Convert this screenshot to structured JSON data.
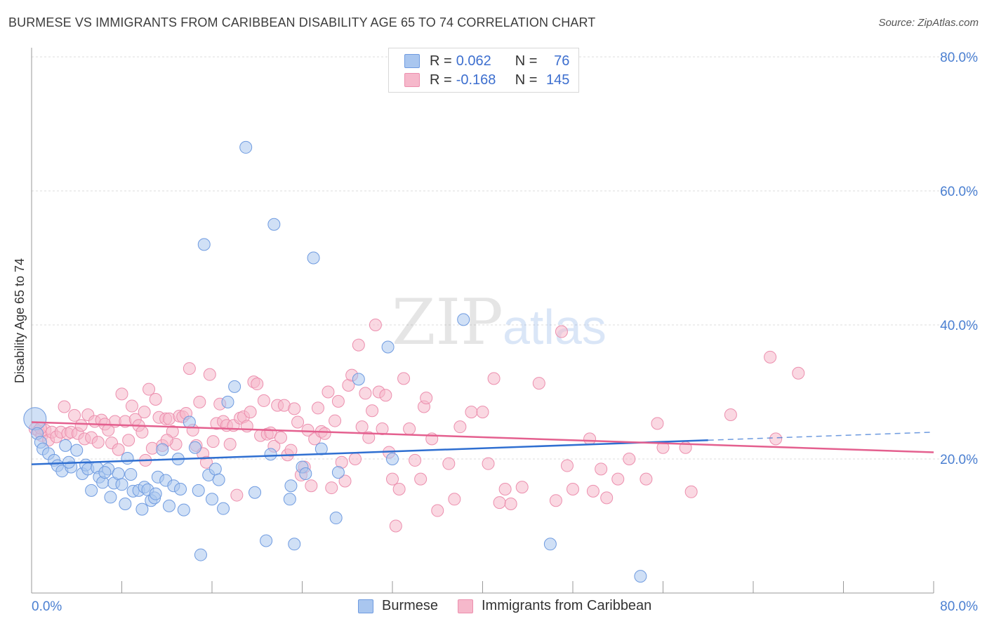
{
  "title": "BURMESE VS IMMIGRANTS FROM CARIBBEAN DISABILITY AGE 65 TO 74 CORRELATION CHART",
  "source": "Source: ZipAtlas.com",
  "watermark": {
    "zip": "ZIP",
    "atlas": "atlas"
  },
  "legend": {
    "burmese": {
      "r_label": "R =",
      "r_value": "0.062",
      "n_label": "N =",
      "n_value": "76"
    },
    "caribbean": {
      "r_label": "R =",
      "r_value": "-0.168",
      "n_label": "N =",
      "n_value": "145"
    }
  },
  "bottom_legend": {
    "burmese": "Burmese",
    "caribbean": "Immigrants from Caribbean"
  },
  "colors": {
    "burmese_fill": "#a9c6ef",
    "burmese_stroke": "#6f9be0",
    "burmese_line": "#2f6fd1",
    "caribbean_fill": "#f6b8cb",
    "caribbean_stroke": "#ec8fae",
    "caribbean_line": "#e4608f",
    "axis_text": "#4a7fd1",
    "grid": "#dddddd"
  },
  "chart_data": {
    "type": "scatter",
    "title": "BURMESE VS IMMIGRANTS FROM CARIBBEAN DISABILITY AGE 65 TO 74 CORRELATION CHART",
    "xlabel": "",
    "ylabel": "Disability Age 65 to 74",
    "xlim": [
      0,
      80
    ],
    "ylim": [
      0,
      80
    ],
    "x_tick_labels": [
      "0.0%",
      "80.0%"
    ],
    "y_tick_labels": [
      "20.0%",
      "40.0%",
      "60.0%",
      "80.0%"
    ],
    "y_ticks": [
      20,
      40,
      60,
      80
    ],
    "series": [
      {
        "name": "Burmese",
        "r": 0.062,
        "n": 76,
        "trend": {
          "x0": 0,
          "y0": 19.2,
          "x1": 60,
          "y1": 22.8,
          "dashed_to_x": 80,
          "dashed_to_y": 24.0
        },
        "points": [
          [
            0.3,
            26.0
          ],
          [
            0.5,
            23.8
          ],
          [
            0.8,
            22.5
          ],
          [
            1.0,
            21.5
          ],
          [
            1.5,
            20.8
          ],
          [
            2.0,
            19.8
          ],
          [
            2.3,
            19.0
          ],
          [
            2.7,
            18.2
          ],
          [
            3.0,
            22.0
          ],
          [
            3.5,
            18.8
          ],
          [
            4.0,
            21.3
          ],
          [
            4.5,
            17.8
          ],
          [
            4.8,
            19.1
          ],
          [
            5.0,
            18.5
          ],
          [
            5.3,
            15.3
          ],
          [
            5.8,
            18.7
          ],
          [
            6.0,
            17.3
          ],
          [
            6.3,
            16.5
          ],
          [
            6.8,
            18.5
          ],
          [
            7.0,
            14.3
          ],
          [
            7.3,
            16.4
          ],
          [
            7.7,
            17.8
          ],
          [
            8.0,
            16.2
          ],
          [
            8.3,
            13.3
          ],
          [
            8.5,
            20.1
          ],
          [
            8.8,
            17.7
          ],
          [
            9.0,
            15.2
          ],
          [
            9.5,
            15.3
          ],
          [
            9.8,
            12.5
          ],
          [
            10.0,
            15.8
          ],
          [
            10.3,
            15.4
          ],
          [
            10.6,
            13.8
          ],
          [
            10.9,
            14.2
          ],
          [
            11.2,
            17.3
          ],
          [
            11.6,
            21.4
          ],
          [
            11.9,
            16.8
          ],
          [
            12.2,
            13.0
          ],
          [
            12.6,
            16.0
          ],
          [
            13.0,
            20.0
          ],
          [
            13.2,
            15.5
          ],
          [
            13.5,
            12.4
          ],
          [
            14.0,
            25.5
          ],
          [
            14.5,
            21.7
          ],
          [
            14.8,
            15.3
          ],
          [
            15.0,
            5.7
          ],
          [
            15.3,
            52.0
          ],
          [
            15.7,
            17.6
          ],
          [
            16.0,
            14.0
          ],
          [
            16.3,
            18.5
          ],
          [
            16.6,
            16.9
          ],
          [
            17.0,
            12.6
          ],
          [
            17.4,
            28.5
          ],
          [
            18.0,
            30.8
          ],
          [
            19.0,
            66.5
          ],
          [
            19.8,
            15.0
          ],
          [
            20.8,
            7.8
          ],
          [
            21.2,
            20.7
          ],
          [
            21.5,
            55.0
          ],
          [
            22.9,
            14.0
          ],
          [
            23.0,
            16.0
          ],
          [
            23.3,
            7.3
          ],
          [
            24.0,
            18.8
          ],
          [
            24.3,
            17.8
          ],
          [
            25.0,
            50.0
          ],
          [
            25.7,
            21.5
          ],
          [
            27.0,
            11.2
          ],
          [
            27.2,
            18.0
          ],
          [
            29.0,
            31.9
          ],
          [
            31.6,
            36.7
          ],
          [
            32.0,
            20.0
          ],
          [
            38.3,
            40.8
          ],
          [
            46.0,
            7.3
          ],
          [
            54.0,
            2.5
          ],
          [
            3.3,
            19.5
          ],
          [
            6.5,
            18.0
          ],
          [
            11.0,
            14.8
          ]
        ]
      },
      {
        "name": "Immigrants from Caribbean",
        "r": -0.168,
        "n": 145,
        "trend": {
          "x0": 0,
          "y0": 25.5,
          "x1": 80,
          "y1": 21.0
        },
        "points": [
          [
            0.3,
            24.5
          ],
          [
            0.6,
            24.2
          ],
          [
            0.9,
            23.5
          ],
          [
            1.2,
            24.3
          ],
          [
            1.5,
            22.8
          ],
          [
            1.8,
            24.0
          ],
          [
            2.2,
            23.3
          ],
          [
            2.6,
            24.0
          ],
          [
            2.9,
            27.8
          ],
          [
            3.2,
            23.8
          ],
          [
            3.5,
            24.0
          ],
          [
            3.8,
            26.5
          ],
          [
            4.1,
            23.8
          ],
          [
            4.4,
            25.0
          ],
          [
            4.7,
            23.0
          ],
          [
            5.0,
            26.6
          ],
          [
            5.3,
            23.2
          ],
          [
            5.6,
            25.6
          ],
          [
            5.9,
            22.5
          ],
          [
            6.2,
            25.8
          ],
          [
            6.5,
            25.2
          ],
          [
            6.8,
            24.3
          ],
          [
            7.1,
            22.4
          ],
          [
            7.4,
            25.6
          ],
          [
            7.7,
            21.4
          ],
          [
            8.0,
            29.7
          ],
          [
            8.3,
            25.6
          ],
          [
            8.6,
            22.8
          ],
          [
            8.9,
            27.9
          ],
          [
            9.2,
            25.9
          ],
          [
            9.5,
            25.0
          ],
          [
            9.8,
            24.0
          ],
          [
            10.1,
            19.8
          ],
          [
            10.4,
            30.4
          ],
          [
            10.7,
            21.6
          ],
          [
            11.0,
            28.9
          ],
          [
            11.3,
            26.2
          ],
          [
            11.6,
            22.0
          ],
          [
            11.9,
            26.0
          ],
          [
            12.2,
            26.0
          ],
          [
            12.5,
            24.1
          ],
          [
            12.8,
            22.2
          ],
          [
            13.1,
            26.4
          ],
          [
            13.4,
            26.3
          ],
          [
            13.7,
            26.8
          ],
          [
            14.0,
            33.5
          ],
          [
            14.3,
            24.3
          ],
          [
            14.6,
            22.0
          ],
          [
            14.9,
            28.5
          ],
          [
            15.2,
            20.8
          ],
          [
            15.5,
            19.5
          ],
          [
            15.8,
            32.6
          ],
          [
            16.1,
            22.6
          ],
          [
            16.4,
            25.3
          ],
          [
            16.7,
            28.2
          ],
          [
            17.0,
            25.6
          ],
          [
            17.3,
            25.0
          ],
          [
            17.6,
            22.2
          ],
          [
            17.9,
            25.0
          ],
          [
            18.2,
            14.6
          ],
          [
            18.5,
            26.1
          ],
          [
            18.8,
            26.3
          ],
          [
            19.1,
            24.9
          ],
          [
            19.4,
            27.0
          ],
          [
            19.7,
            31.5
          ],
          [
            20.0,
            31.2
          ],
          [
            20.3,
            23.5
          ],
          [
            20.6,
            28.7
          ],
          [
            20.9,
            23.7
          ],
          [
            21.2,
            23.9
          ],
          [
            21.5,
            21.9
          ],
          [
            21.8,
            28.0
          ],
          [
            22.1,
            23.2
          ],
          [
            22.4,
            28.0
          ],
          [
            22.7,
            20.6
          ],
          [
            23.0,
            21.3
          ],
          [
            23.3,
            27.5
          ],
          [
            23.6,
            25.5
          ],
          [
            23.9,
            17.6
          ],
          [
            24.2,
            18.8
          ],
          [
            24.5,
            24.3
          ],
          [
            24.8,
            16.0
          ],
          [
            25.1,
            23.0
          ],
          [
            25.4,
            27.6
          ],
          [
            25.7,
            24.1
          ],
          [
            26.0,
            23.8
          ],
          [
            26.3,
            30.0
          ],
          [
            26.6,
            15.7
          ],
          [
            26.9,
            25.7
          ],
          [
            27.2,
            28.6
          ],
          [
            27.5,
            19.5
          ],
          [
            27.8,
            16.7
          ],
          [
            28.1,
            31.0
          ],
          [
            28.4,
            32.5
          ],
          [
            28.7,
            20.0
          ],
          [
            29.0,
            37.0
          ],
          [
            29.3,
            24.8
          ],
          [
            29.6,
            29.8
          ],
          [
            29.9,
            23.2
          ],
          [
            30.2,
            27.2
          ],
          [
            30.5,
            40.0
          ],
          [
            30.8,
            30.0
          ],
          [
            31.1,
            24.5
          ],
          [
            31.4,
            29.5
          ],
          [
            31.7,
            21.0
          ],
          [
            32.0,
            17.0
          ],
          [
            32.3,
            10.0
          ],
          [
            32.6,
            15.5
          ],
          [
            33.0,
            32.0
          ],
          [
            33.5,
            24.5
          ],
          [
            34.0,
            19.8
          ],
          [
            34.5,
            17.0
          ],
          [
            34.8,
            27.8
          ],
          [
            35.0,
            29.1
          ],
          [
            35.5,
            23.0
          ],
          [
            36.0,
            12.3
          ],
          [
            37.0,
            19.3
          ],
          [
            37.5,
            14.0
          ],
          [
            38.0,
            24.8
          ],
          [
            39.0,
            27.0
          ],
          [
            40.0,
            27.0
          ],
          [
            40.5,
            19.3
          ],
          [
            41.0,
            32.0
          ],
          [
            41.5,
            13.5
          ],
          [
            42.0,
            15.5
          ],
          [
            42.5,
            13.3
          ],
          [
            43.5,
            15.8
          ],
          [
            45.0,
            31.3
          ],
          [
            46.5,
            13.8
          ],
          [
            47.0,
            39.0
          ],
          [
            47.5,
            19.0
          ],
          [
            48.0,
            15.5
          ],
          [
            49.5,
            23.0
          ],
          [
            49.8,
            15.2
          ],
          [
            50.5,
            18.5
          ],
          [
            51.0,
            14.2
          ],
          [
            52.0,
            17.0
          ],
          [
            53.0,
            20.0
          ],
          [
            54.5,
            17.0
          ],
          [
            55.5,
            25.3
          ],
          [
            56.0,
            21.7
          ],
          [
            58.0,
            21.7
          ],
          [
            58.5,
            15.1
          ],
          [
            62.0,
            26.6
          ],
          [
            65.5,
            35.2
          ],
          [
            66.0,
            23.0
          ],
          [
            68.0,
            32.8
          ],
          [
            10.0,
            27.0
          ],
          [
            12.0,
            22.8
          ],
          [
            0.8,
            24.6
          ]
        ]
      }
    ]
  }
}
